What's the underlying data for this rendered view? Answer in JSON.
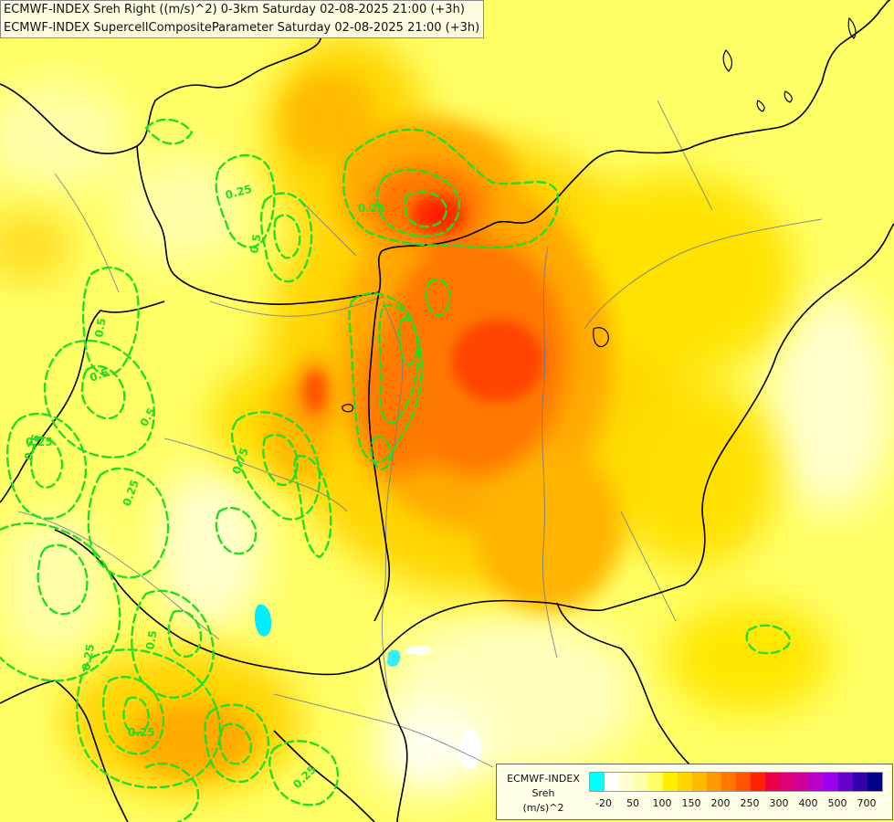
{
  "header": {
    "line1": "ECMWF-INDEX Sreh Right ((m/s)^2) 0-3km Saturday 02-08-2025 21:00 (+3h)",
    "line2": "ECMWF-INDEX SupercellCompositeParameter Saturday 02-08-2025 21:00 (+3h)"
  },
  "contour_labels": [
    "0.25",
    "0.25",
    "0.5",
    "0.5",
    "0.5",
    "0.5",
    "0.25",
    "0.75",
    "0.25",
    "0.75",
    "0.25",
    "0.5",
    "0.25",
    "0.25"
  ],
  "legend": {
    "title1": "ECMWF-INDEX",
    "title2": "Sreh",
    "title3": "(m/s)^2",
    "colors": [
      "#00ffff",
      "#ffffff",
      "#ffffd0",
      "#ffffaa",
      "#ffff66",
      "#ffee00",
      "#ffd400",
      "#ffbb00",
      "#ff9900",
      "#ff7700",
      "#ff5500",
      "#ff2200",
      "#ee0044",
      "#dd0077",
      "#cc0099",
      "#bb00cc",
      "#9900ee",
      "#6600cc",
      "#3300aa",
      "#000088"
    ],
    "tick_labels": [
      "-20",
      "50",
      "100",
      "150",
      "200",
      "250",
      "300",
      "400",
      "500",
      "700"
    ]
  },
  "colors": {
    "contour": "#22dd22",
    "border": "#000000",
    "river": "#667799"
  }
}
